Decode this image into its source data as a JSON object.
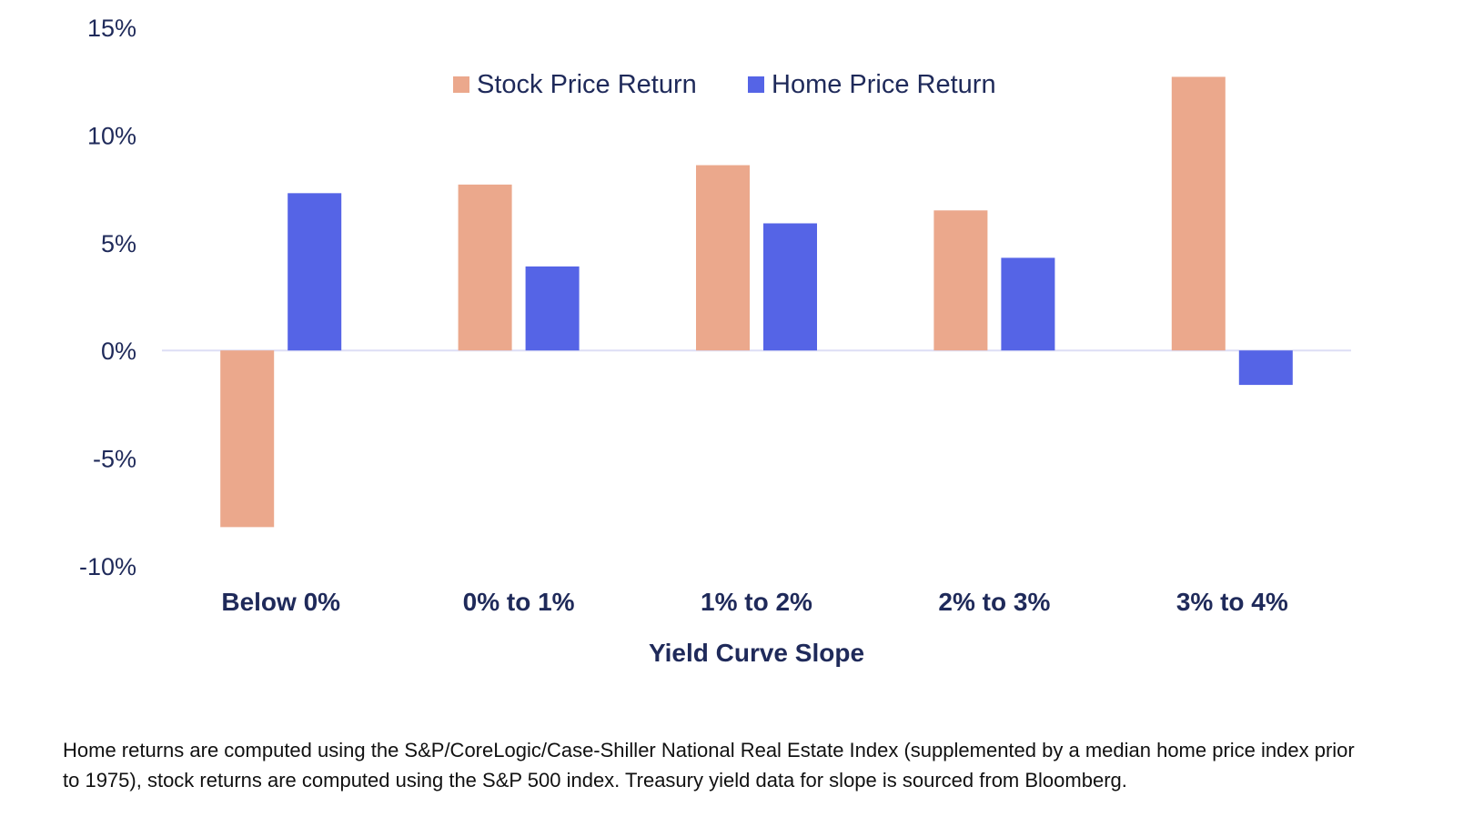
{
  "chart_data": {
    "type": "bar",
    "categories": [
      "Below 0%",
      "0% to 1%",
      "1% to 2%",
      "2% to 3%",
      "3% to 4%"
    ],
    "series": [
      {
        "name": "Stock Price Return",
        "color": "#EBA88C",
        "values": [
          -8.2,
          7.7,
          8.6,
          6.5,
          12.7
        ]
      },
      {
        "name": "Home Price Return",
        "color": "#5564E6",
        "values": [
          7.3,
          3.9,
          5.9,
          4.3,
          -1.6
        ]
      }
    ],
    "xlabel": "Yield Curve Slope",
    "ylabel": "",
    "ylim": [
      -10,
      15
    ],
    "yticks": [
      {
        "value": 15,
        "label": "15%"
      },
      {
        "value": 10,
        "label": "10%"
      },
      {
        "value": 5,
        "label": "5%"
      },
      {
        "value": 0,
        "label": "0%"
      },
      {
        "value": -5,
        "label": "-5%"
      },
      {
        "value": -10,
        "label": "-10%"
      }
    ],
    "grid": false,
    "legend": "top-center",
    "zero_line_color": "#DDDEF5"
  },
  "footnote": "Home returns are computed using the S&P/CoreLogic/Case-Shiller National Real Estate Index (supplemented by a median home price index prior to 1975), stock returns are computed using the S&P 500 index. Treasury yield data for slope is sourced from Bloomberg."
}
